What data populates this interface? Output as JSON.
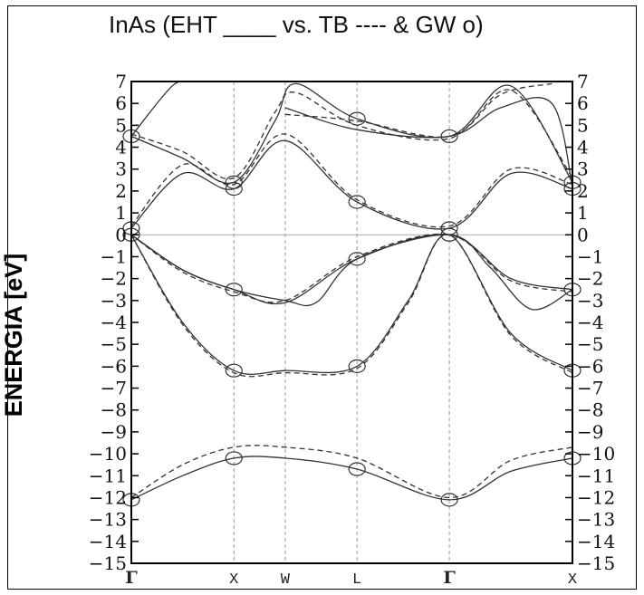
{
  "chart_data": {
    "type": "line",
    "title": "InAs (EHT ____ vs. TB ---- & GW o)",
    "ylabel": "ENERGIA [eV]",
    "xlabel": "",
    "ylim": [
      -15,
      7
    ],
    "yticks": [
      7,
      6,
      5,
      4,
      3,
      2,
      1,
      0,
      -1,
      -2,
      -3,
      -4,
      -5,
      -6,
      -7,
      -8,
      -9,
      -10,
      -11,
      -12,
      -13,
      -14,
      -15
    ],
    "x_labels": [
      {
        "label": "Γ",
        "x": 0
      },
      {
        "label": "X",
        "x": 1
      },
      {
        "label": "W",
        "x": 1.5
      },
      {
        "label": "L",
        "x": 2.2
      },
      {
        "label": "Γ",
        "x": 3.1
      },
      {
        "label": "X",
        "x": 4.3
      }
    ],
    "grid": "vertical dashed lines at symmetry points",
    "zero_line": true,
    "series": [
      {
        "style": "solid",
        "bands": [
          [
            [
              0,
              -12.1
            ],
            [
              0.5,
              -11.0
            ],
            [
              1,
              -10.2
            ],
            [
              1.5,
              -10.2
            ],
            [
              2.2,
              -10.7
            ],
            [
              3.1,
              -12.1
            ],
            [
              3.7,
              -10.8
            ],
            [
              4.3,
              -10.2
            ]
          ],
          [
            [
              0,
              0
            ],
            [
              0.5,
              -4.0
            ],
            [
              1,
              -6.2
            ],
            [
              1.5,
              -6.2
            ],
            [
              2.2,
              -6.0
            ],
            [
              2.7,
              -3.0
            ],
            [
              3.1,
              0
            ],
            [
              3.7,
              -4.5
            ],
            [
              4.3,
              -6.2
            ]
          ],
          [
            [
              0,
              0
            ],
            [
              0.5,
              -1.6
            ],
            [
              1,
              -2.5
            ],
            [
              1.5,
              -3.1
            ],
            [
              2.2,
              -1.1
            ],
            [
              3.1,
              0
            ],
            [
              3.7,
              -2.0
            ],
            [
              4.3,
              -2.5
            ]
          ],
          [
            [
              0,
              0
            ],
            [
              0.5,
              -1.6
            ],
            [
              1,
              -2.5
            ],
            [
              1.5,
              -3.0
            ],
            [
              1.8,
              -3.1
            ],
            [
              2.2,
              -1.1
            ],
            [
              3.1,
              0
            ],
            [
              3.5,
              -1.5
            ],
            [
              3.9,
              -3.4
            ],
            [
              4.3,
              -2.5
            ]
          ],
          [
            [
              0,
              0.3
            ],
            [
              0.5,
              2.8
            ],
            [
              1,
              2.1
            ],
            [
              1.5,
              4.3
            ],
            [
              2.2,
              1.5
            ],
            [
              3.1,
              0.3
            ],
            [
              3.7,
              2.8
            ],
            [
              4.3,
              2.1
            ]
          ],
          [
            [
              0,
              4.5
            ],
            [
              0.5,
              3.5
            ],
            [
              1,
              2.4
            ],
            [
              1.4,
              5.2
            ],
            [
              1.6,
              6.9
            ],
            [
              2.2,
              5.3
            ],
            [
              3.1,
              4.5
            ],
            [
              3.7,
              6.8
            ],
            [
              4.3,
              2.4
            ]
          ],
          [
            [
              0,
              4.5
            ],
            [
              0.4,
              6.8
            ],
            [
              0.6,
              7.0
            ]
          ],
          [
            [
              1.5,
              5.8
            ],
            [
              2.2,
              4.8
            ],
            [
              3.1,
              4.5
            ],
            [
              3.6,
              5.8
            ],
            [
              4.1,
              6.0
            ],
            [
              4.3,
              2.2
            ]
          ]
        ]
      },
      {
        "style": "dashed",
        "bands": [
          [
            [
              0,
              -12.0
            ],
            [
              0.5,
              -10.5
            ],
            [
              1,
              -9.7
            ],
            [
              1.5,
              -9.7
            ],
            [
              2.2,
              -10.2
            ],
            [
              3.1,
              -12.0
            ],
            [
              3.7,
              -10.3
            ],
            [
              4.3,
              -9.7
            ]
          ],
          [
            [
              0,
              0
            ],
            [
              0.5,
              -4.1
            ],
            [
              1,
              -6.3
            ],
            [
              1.5,
              -6.3
            ],
            [
              2.2,
              -6.1
            ],
            [
              2.7,
              -3.1
            ],
            [
              3.1,
              0
            ],
            [
              3.7,
              -4.6
            ],
            [
              4.3,
              -6.3
            ]
          ],
          [
            [
              0,
              0
            ],
            [
              0.5,
              -1.7
            ],
            [
              1,
              -2.6
            ],
            [
              1.5,
              -3.0
            ],
            [
              2.2,
              -1.0
            ],
            [
              3.1,
              0
            ],
            [
              3.7,
              -2.1
            ],
            [
              4.3,
              -2.6
            ]
          ],
          [
            [
              0,
              0.4
            ],
            [
              0.5,
              3.2
            ],
            [
              1,
              2.3
            ],
            [
              1.5,
              4.6
            ],
            [
              2.2,
              1.6
            ],
            [
              3.1,
              0.4
            ],
            [
              3.7,
              3.0
            ],
            [
              4.3,
              2.3
            ]
          ],
          [
            [
              0,
              4.6
            ],
            [
              0.5,
              3.8
            ],
            [
              1,
              2.6
            ],
            [
              1.4,
              5.6
            ],
            [
              1.6,
              6.5
            ],
            [
              2.2,
              5.0
            ],
            [
              3.1,
              4.4
            ],
            [
              3.7,
              6.6
            ],
            [
              4.3,
              2.6
            ]
          ],
          [
            [
              1.5,
              5.5
            ],
            [
              2.2,
              5.2
            ],
            [
              3.1,
              4.5
            ],
            [
              3.6,
              6.4
            ],
            [
              4.1,
              6.9
            ]
          ]
        ]
      },
      {
        "style": "circles",
        "points": [
          [
            0,
            -12.1
          ],
          [
            0,
            0
          ],
          [
            0,
            0.3
          ],
          [
            0,
            4.5
          ],
          [
            1,
            -10.2
          ],
          [
            1,
            -6.2
          ],
          [
            1,
            -2.5
          ],
          [
            1,
            2.1
          ],
          [
            1,
            2.4
          ],
          [
            2.2,
            -10.7
          ],
          [
            2.2,
            -6.0
          ],
          [
            2.2,
            -1.1
          ],
          [
            2.2,
            1.5
          ],
          [
            2.2,
            5.3
          ],
          [
            3.1,
            -12.1
          ],
          [
            3.1,
            0
          ],
          [
            3.1,
            0.3
          ],
          [
            3.1,
            4.5
          ],
          [
            4.3,
            -10.2
          ],
          [
            4.3,
            -6.2
          ],
          [
            4.3,
            -2.5
          ],
          [
            4.3,
            2.1
          ],
          [
            4.3,
            2.4
          ]
        ]
      }
    ]
  }
}
